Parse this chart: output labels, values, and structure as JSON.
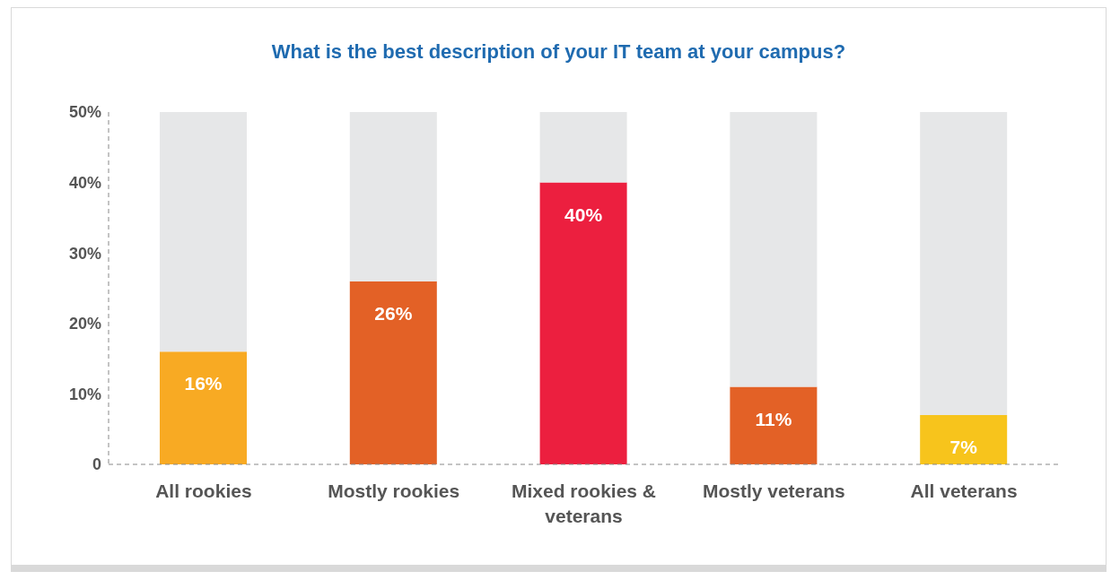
{
  "chart_data": {
    "type": "bar",
    "title": "What is the best description of your IT team at your campus?",
    "categories": [
      "All rookies",
      "Mostly rookies",
      "Mixed rookies & veterans",
      "Mostly veterans",
      "All veterans"
    ],
    "stacked": true,
    "series": [
      {
        "colors": [
          "#f8aa23",
          "#e36126",
          "#ec1f3f",
          "#e36126",
          "#f7c41c"
        ],
        "values": [
          16,
          26,
          40,
          11,
          7
        ],
        "value_labels": [
          "16%",
          "26%",
          "40%",
          "11%",
          "7%"
        ]
      },
      {
        "color": "#e6e7e8",
        "values": [
          34,
          24,
          10,
          39,
          43
        ]
      }
    ],
    "ylim": [
      0,
      50
    ],
    "yticks": [
      0,
      {
        "value": 10,
        "label": "10%"
      },
      {
        "value": 20,
        "label": "20%"
      },
      {
        "value": 30,
        "label": "30%"
      },
      {
        "value": 40,
        "label": "40%"
      },
      {
        "value": 50,
        "label": "50%"
      }
    ]
  }
}
